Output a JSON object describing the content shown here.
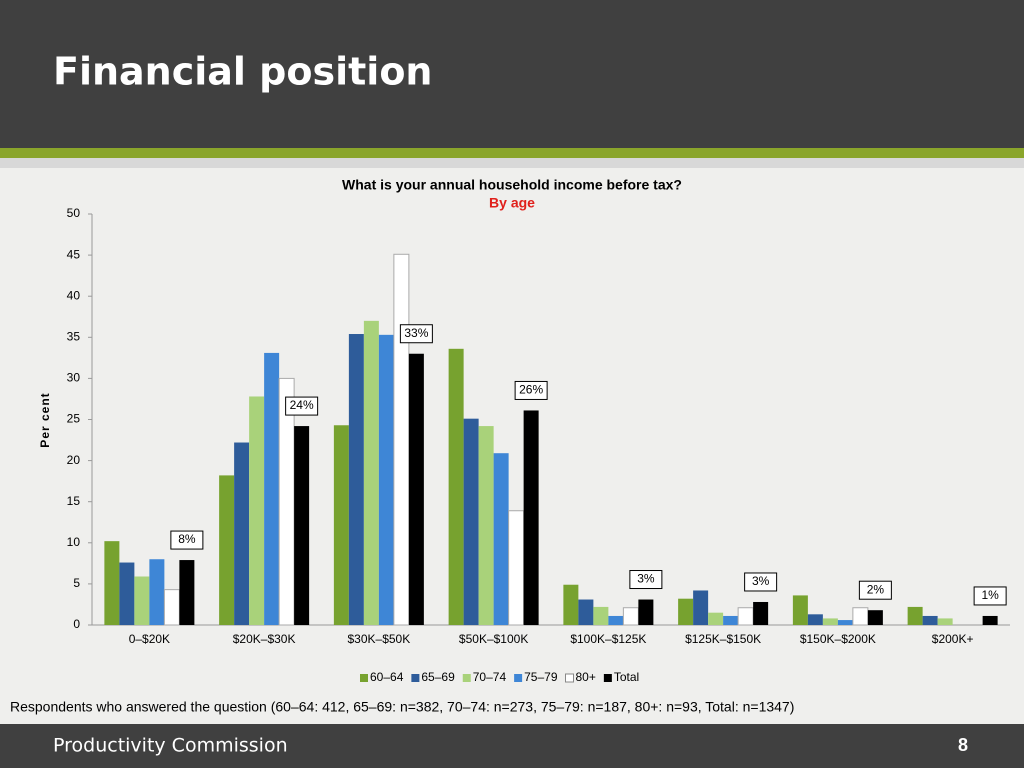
{
  "slide": {
    "title": "Financial position",
    "note": "Respondents who answered the question (60–64: 412, 65–69: n=382, 70–74: n=273, 75–79: n=187, 80+: n=93, Total: n=1347)",
    "footer": "Productivity Commission",
    "page_number": 8
  },
  "chart_data": {
    "type": "bar",
    "title": "What is your annual household income before tax?",
    "subtitle": "By age",
    "ylabel": "Per cent",
    "categories": [
      "0–$20K",
      "$20K–$30K",
      "$30K–$50K",
      "$50K–$100K",
      "$100K–$125K",
      "$125K–$150K",
      "$150K–$200K",
      "$200K+"
    ],
    "series": [
      {
        "name": "60–64",
        "color": "#77a22f",
        "values": [
          10.2,
          18.2,
          24.3,
          33.6,
          4.9,
          3.2,
          3.6,
          2.2
        ]
      },
      {
        "name": "65–69",
        "color": "#2e5c9a",
        "values": [
          7.6,
          22.2,
          35.4,
          25.1,
          3.1,
          4.2,
          1.3,
          1.1
        ]
      },
      {
        "name": "70–74",
        "color": "#a9d27a",
        "values": [
          5.9,
          27.8,
          37.0,
          24.2,
          2.2,
          1.5,
          0.8,
          0.8
        ]
      },
      {
        "name": "75–79",
        "color": "#3e86d6",
        "values": [
          8.0,
          33.1,
          35.3,
          20.9,
          1.1,
          1.1,
          0.6,
          0
        ]
      },
      {
        "name": "80+",
        "color": "#ffffff",
        "values": [
          4.3,
          30.0,
          45.1,
          13.9,
          2.1,
          2.1,
          2.1,
          0
        ]
      },
      {
        "name": "Total",
        "color": "#000000",
        "values": [
          7.9,
          24.2,
          33.0,
          26.1,
          3.1,
          2.8,
          1.8,
          1.1
        ],
        "value_labels": [
          "8%",
          "24%",
          "33%",
          "26%",
          "3%",
          "3%",
          "2%",
          "1%"
        ]
      }
    ],
    "ylim": [
      0,
      50
    ],
    "yticks": [
      0,
      5,
      10,
      15,
      20,
      25,
      30,
      35,
      40,
      45,
      50
    ],
    "grid": false,
    "legend": "bottom"
  }
}
